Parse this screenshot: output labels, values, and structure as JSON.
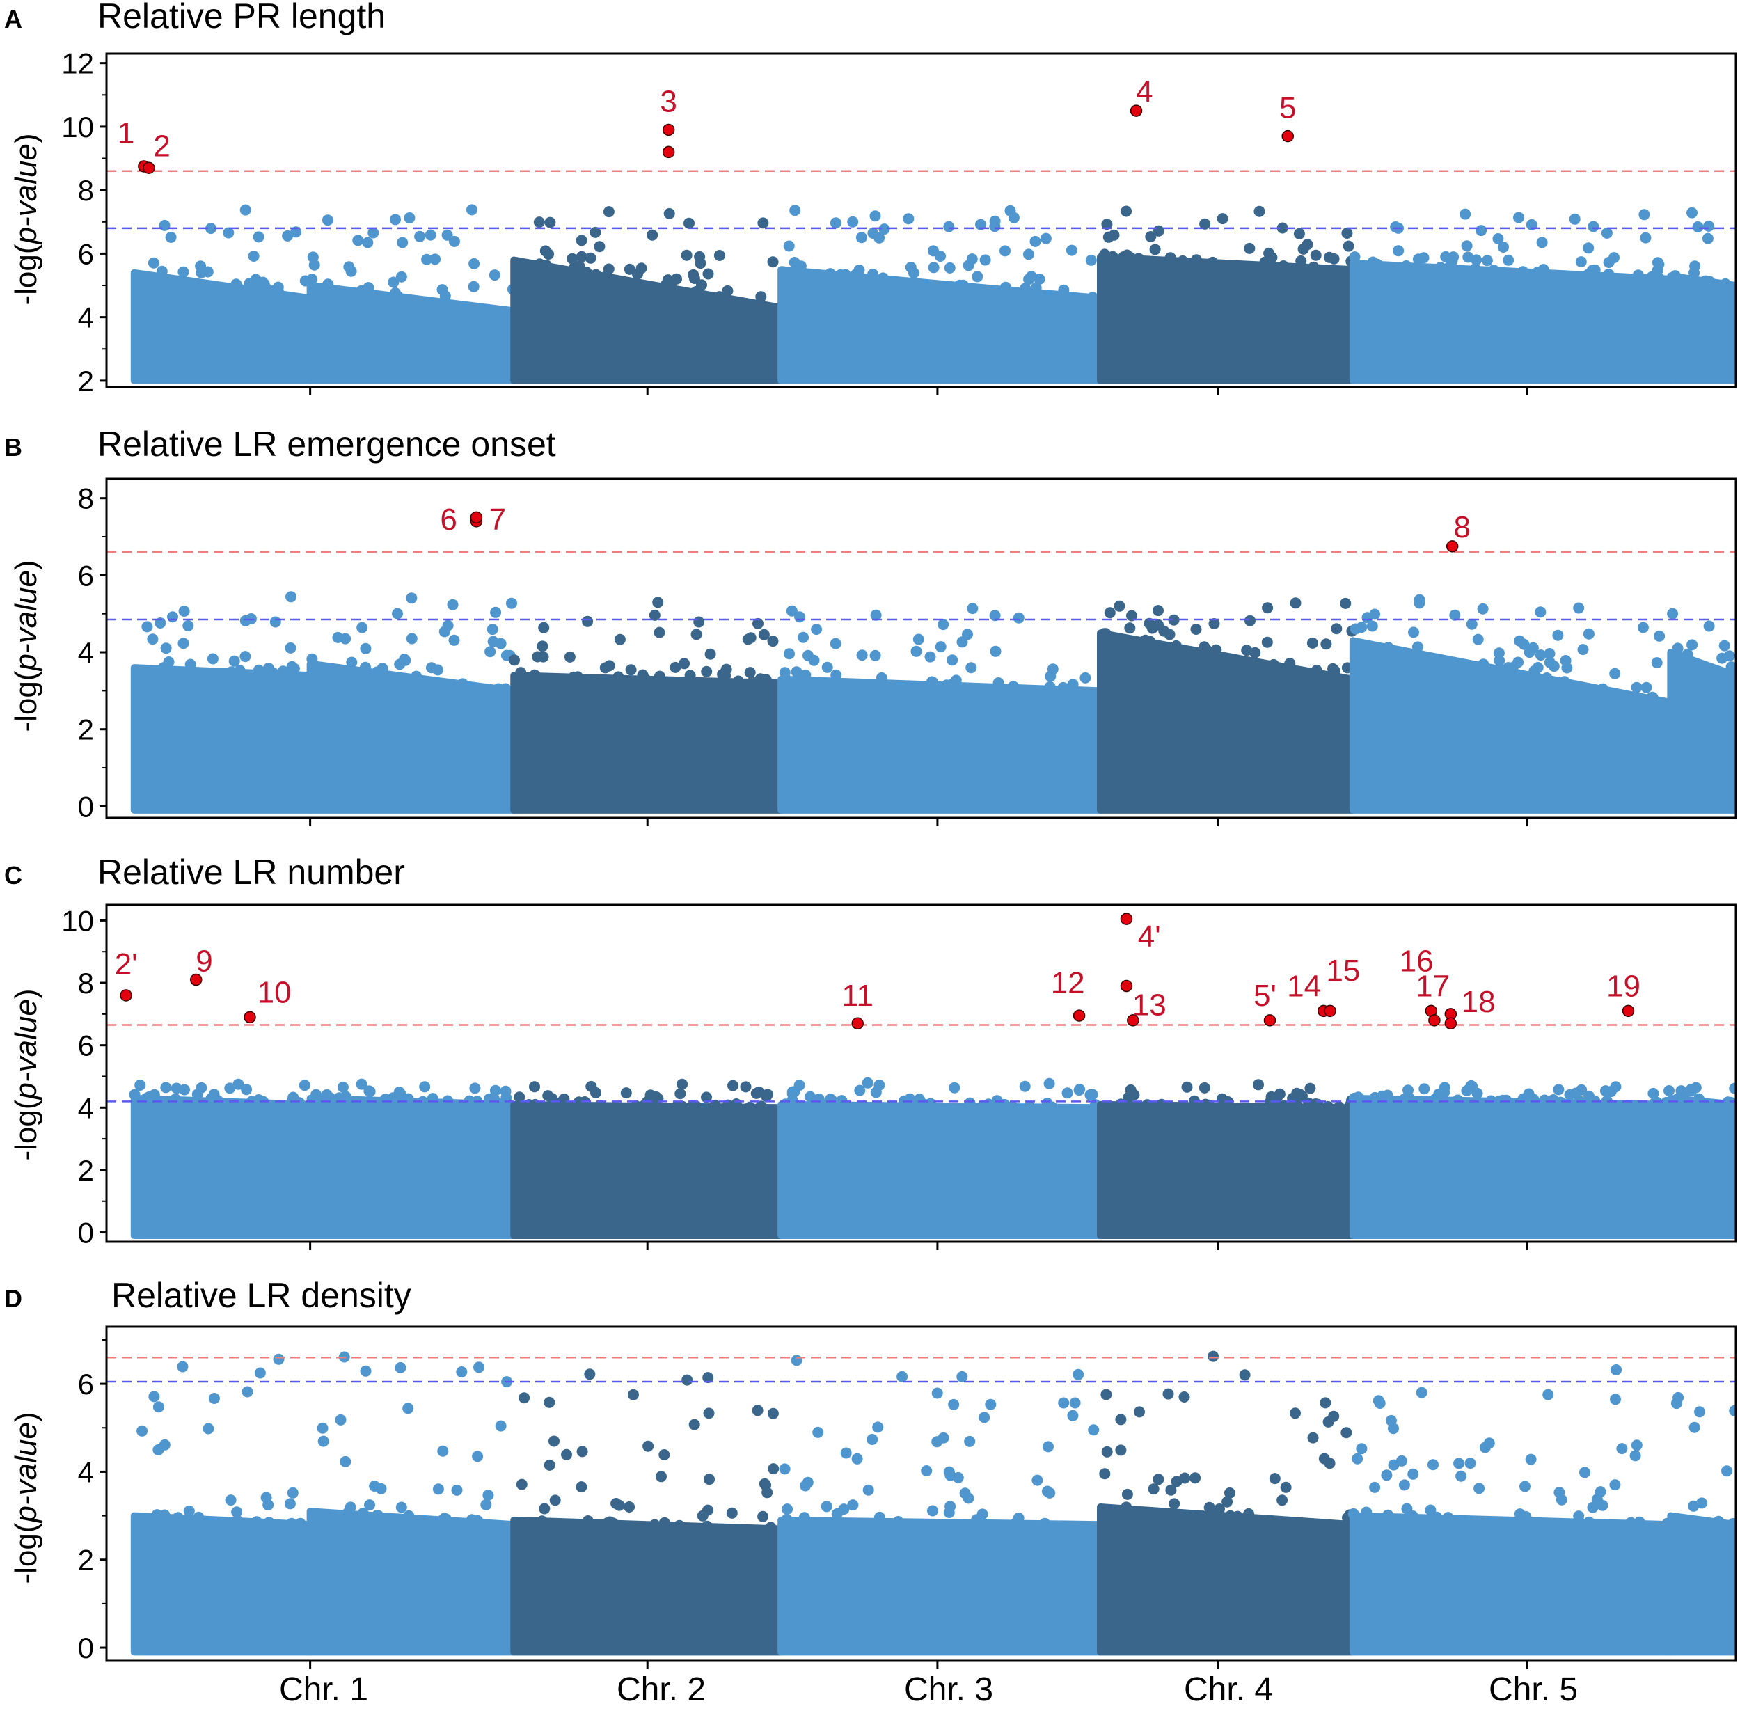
{
  "colors": {
    "chr_light": "#4f96cf",
    "chr_dark": "#3a668c",
    "highlight": "#e3000f",
    "label": "#c5102a",
    "threshold_red": "#f07d7d",
    "threshold_blue": "#5a5aee"
  },
  "xaxis": {
    "tick_labels": [
      "Chr. 1",
      "Chr. 2",
      "Chr. 3",
      "Chr. 4",
      "Chr. 5"
    ]
  },
  "chart_data": [
    {
      "type": "scatter",
      "panel": "A",
      "title": "Relative PR length",
      "ylabel_prefix": "-log(",
      "ylabel_italic": "p-value",
      "ylabel_suffix": ")",
      "ylim": [
        1.8,
        12.3
      ],
      "yticks": [
        2,
        4,
        6,
        8,
        10,
        12
      ],
      "bonferroni_threshold": 8.6,
      "fdr_threshold": 6.8,
      "bands": [
        {
          "chr": "Chr. 1",
          "range": [
            0.017,
            0.125
          ],
          "h": 5.4,
          "b": 4.6
        },
        {
          "chr": "Chr. 1",
          "range": [
            0.125,
            0.25
          ],
          "h": 5.0,
          "b": 4.2
        },
        {
          "chr": "Chr. 2",
          "range": [
            0.25,
            0.414
          ],
          "h": 5.8,
          "b": 4.3
        },
        {
          "chr": "Chr. 3",
          "range": [
            0.414,
            0.61
          ],
          "h": 5.5,
          "b": 4.6
        },
        {
          "chr": "Chr. 4",
          "range": [
            0.61,
            0.765
          ],
          "h": 5.9,
          "b": 5.5
        },
        {
          "chr": "Chr. 5",
          "range": [
            0.765,
            0.96
          ],
          "h": 5.7,
          "b": 5.2
        },
        {
          "chr": "Chr. 5",
          "range": [
            0.96,
            1.0
          ],
          "h": 5.3,
          "b": 5.0
        }
      ],
      "highlighted_snps": [
        {
          "label": "1",
          "x": 0.023,
          "y": 8.75
        },
        {
          "label": "2",
          "x": 0.026,
          "y": 8.7
        },
        {
          "label": "3",
          "x": 0.345,
          "y": 9.9
        },
        {
          "label": "3",
          "x": 0.345,
          "y": 9.2
        },
        {
          "label": "4",
          "x": 0.632,
          "y": 10.5
        },
        {
          "label": "5",
          "x": 0.725,
          "y": 9.7
        }
      ],
      "labels": [
        {
          "text": "1",
          "x": 0.012,
          "y": 9.8
        },
        {
          "text": "2",
          "x": 0.034,
          "y": 9.4
        },
        {
          "text": "3",
          "x": 0.345,
          "y": 10.8
        },
        {
          "text": "4",
          "x": 0.637,
          "y": 11.1
        },
        {
          "text": "5",
          "x": 0.725,
          "y": 10.6
        }
      ]
    },
    {
      "type": "scatter",
      "panel": "B",
      "title": "Relative LR emergence onset",
      "ylabel_prefix": "-log(",
      "ylabel_italic": "p-value",
      "ylabel_suffix": ")",
      "ylim": [
        -0.3,
        8.5
      ],
      "yticks": [
        0,
        2,
        4,
        6,
        8
      ],
      "bonferroni_threshold": 6.6,
      "fdr_threshold": 4.85,
      "bands": [
        {
          "chr": "Chr. 1",
          "range": [
            0.017,
            0.125
          ],
          "h": 3.6,
          "b": 3.4
        },
        {
          "chr": "Chr. 1",
          "range": [
            0.125,
            0.25
          ],
          "h": 3.7,
          "b": 3.0
        },
        {
          "chr": "Chr. 2",
          "range": [
            0.25,
            0.414
          ],
          "h": 3.4,
          "b": 3.2
        },
        {
          "chr": "Chr. 3",
          "range": [
            0.414,
            0.61
          ],
          "h": 3.3,
          "b": 3.0
        },
        {
          "chr": "Chr. 4",
          "range": [
            0.61,
            0.765
          ],
          "h": 4.5,
          "b": 3.3
        },
        {
          "chr": "Chr. 5",
          "range": [
            0.765,
            0.96
          ],
          "h": 4.3,
          "b": 2.7
        },
        {
          "chr": "Chr. 5",
          "range": [
            0.96,
            1.0
          ],
          "h": 4.0,
          "b": 3.4
        }
      ],
      "highlighted_snps": [
        {
          "label": "6",
          "x": 0.227,
          "y": 7.4
        },
        {
          "label": "7",
          "x": 0.227,
          "y": 7.5
        },
        {
          "label": "8",
          "x": 0.826,
          "y": 6.75
        }
      ],
      "labels": [
        {
          "text": "6",
          "x": 0.21,
          "y": 7.45
        },
        {
          "text": "7",
          "x": 0.24,
          "y": 7.45
        },
        {
          "text": "8",
          "x": 0.832,
          "y": 7.25
        }
      ]
    },
    {
      "type": "scatter",
      "panel": "C",
      "title": "Relative LR number",
      "ylabel_prefix": "-log(",
      "ylabel_italic": "p-value",
      "ylabel_suffix": ")",
      "ylim": [
        -0.3,
        10.5
      ],
      "yticks": [
        0,
        2,
        4,
        6,
        8,
        10
      ],
      "bonferroni_threshold": 6.65,
      "fdr_threshold": 4.2,
      "bands": [
        {
          "chr": "Chr. 1",
          "range": [
            0.017,
            0.125
          ],
          "h": 4.3,
          "b": 4.1
        },
        {
          "chr": "Chr. 1",
          "range": [
            0.125,
            0.25
          ],
          "h": 4.3,
          "b": 4.1
        },
        {
          "chr": "Chr. 2",
          "range": [
            0.25,
            0.414
          ],
          "h": 4.1,
          "b": 4.0
        },
        {
          "chr": "Chr. 3",
          "range": [
            0.414,
            0.61
          ],
          "h": 4.1,
          "b": 4.0
        },
        {
          "chr": "Chr. 4",
          "range": [
            0.61,
            0.765
          ],
          "h": 4.1,
          "b": 4.0
        },
        {
          "chr": "Chr. 5",
          "range": [
            0.765,
            0.96
          ],
          "h": 4.3,
          "b": 4.1
        },
        {
          "chr": "Chr. 5",
          "range": [
            0.96,
            1.0
          ],
          "h": 4.3,
          "b": 4.1
        }
      ],
      "highlighted_snps": [
        {
          "label": "2'",
          "x": 0.012,
          "y": 7.6
        },
        {
          "label": "9",
          "x": 0.055,
          "y": 8.1
        },
        {
          "label": "10",
          "x": 0.088,
          "y": 6.9
        },
        {
          "label": "11",
          "x": 0.461,
          "y": 6.7
        },
        {
          "label": "12",
          "x": 0.597,
          "y": 6.95
        },
        {
          "label": "4'",
          "x": 0.626,
          "y": 10.05
        },
        {
          "label": "4'",
          "x": 0.626,
          "y": 7.9
        },
        {
          "label": "13",
          "x": 0.63,
          "y": 6.8
        },
        {
          "label": "5'",
          "x": 0.714,
          "y": 6.8
        },
        {
          "label": "14",
          "x": 0.747,
          "y": 7.1
        },
        {
          "label": "15",
          "x": 0.751,
          "y": 7.1
        },
        {
          "label": "16",
          "x": 0.813,
          "y": 7.1
        },
        {
          "label": "17",
          "x": 0.815,
          "y": 6.8
        },
        {
          "label": "17",
          "x": 0.825,
          "y": 7.0
        },
        {
          "label": "18",
          "x": 0.825,
          "y": 6.7
        },
        {
          "label": "19",
          "x": 0.934,
          "y": 7.1
        }
      ],
      "labels": [
        {
          "text": "2'",
          "x": 0.012,
          "y": 8.6
        },
        {
          "text": "9",
          "x": 0.06,
          "y": 8.7
        },
        {
          "text": "10",
          "x": 0.103,
          "y": 7.7
        },
        {
          "text": "11",
          "x": 0.461,
          "y": 7.6
        },
        {
          "text": "12",
          "x": 0.59,
          "y": 8.0
        },
        {
          "text": "4'",
          "x": 0.64,
          "y": 9.5
        },
        {
          "text": "13",
          "x": 0.64,
          "y": 7.3
        },
        {
          "text": "5'",
          "x": 0.711,
          "y": 7.6
        },
        {
          "text": "14",
          "x": 0.735,
          "y": 7.9
        },
        {
          "text": "15",
          "x": 0.759,
          "y": 8.4
        },
        {
          "text": "16",
          "x": 0.804,
          "y": 8.7
        },
        {
          "text": "17",
          "x": 0.814,
          "y": 7.9
        },
        {
          "text": "18",
          "x": 0.842,
          "y": 7.4
        },
        {
          "text": "19",
          "x": 0.931,
          "y": 7.9
        }
      ]
    },
    {
      "type": "scatter",
      "panel": "D",
      "title": "Relative LR density",
      "ylabel_prefix": "-log(",
      "ylabel_italic": "p-value",
      "ylabel_suffix": ")",
      "ylim": [
        -0.3,
        7.3
      ],
      "yticks": [
        0,
        2,
        4,
        6
      ],
      "bonferroni_threshold": 6.6,
      "fdr_threshold": 6.05,
      "bands": [
        {
          "chr": "Chr. 1",
          "range": [
            0.017,
            0.125
          ],
          "h": 3.0,
          "b": 2.8
        },
        {
          "chr": "Chr. 1",
          "range": [
            0.125,
            0.25
          ],
          "h": 3.1,
          "b": 2.8
        },
        {
          "chr": "Chr. 2",
          "range": [
            0.25,
            0.414
          ],
          "h": 2.9,
          "b": 2.7
        },
        {
          "chr": "Chr. 3",
          "range": [
            0.414,
            0.61
          ],
          "h": 2.9,
          "b": 2.8
        },
        {
          "chr": "Chr. 4",
          "range": [
            0.61,
            0.765
          ],
          "h": 3.2,
          "b": 2.8
        },
        {
          "chr": "Chr. 5",
          "range": [
            0.765,
            0.96
          ],
          "h": 3.0,
          "b": 2.8
        },
        {
          "chr": "Chr. 5",
          "range": [
            0.96,
            1.0
          ],
          "h": 3.0,
          "b": 2.8
        }
      ],
      "highlighted_snps": [],
      "labels": []
    }
  ]
}
